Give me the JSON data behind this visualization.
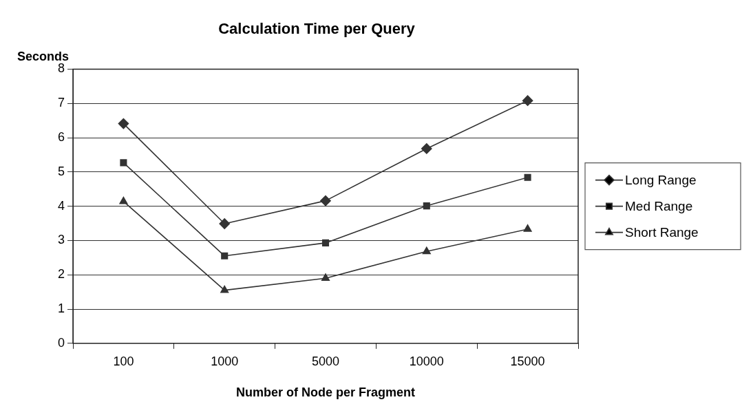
{
  "chart_data": {
    "type": "line",
    "title": "Calculation Time per Query",
    "xlabel": "Number of Node per Fragment",
    "ylabel": "Seconds",
    "categories": [
      "100",
      "1000",
      "5000",
      "10000",
      "15000"
    ],
    "series": [
      {
        "name": "Long Range",
        "color": "#333333",
        "marker": "diamond",
        "values": [
          6.41,
          3.49,
          4.16,
          5.68,
          7.08
        ]
      },
      {
        "name": "Med Range",
        "color": "#333333",
        "marker": "square",
        "values": [
          5.27,
          2.55,
          2.93,
          4.01,
          4.84
        ]
      },
      {
        "name": "Short Range",
        "color": "#333333",
        "marker": "triangle",
        "values": [
          4.14,
          1.55,
          1.9,
          2.68,
          3.33
        ]
      }
    ],
    "ylim": [
      0,
      8
    ],
    "yticks": [
      0,
      1,
      2,
      3,
      4,
      5,
      6,
      7,
      8
    ],
    "grid": "y",
    "legend": "right",
    "line_style": "solid"
  }
}
